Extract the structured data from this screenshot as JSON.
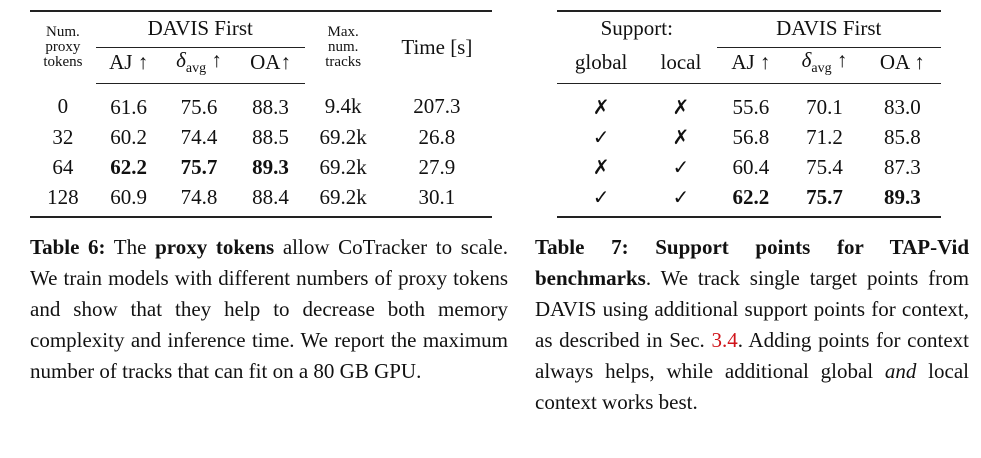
{
  "table6": {
    "header": {
      "num_tokens": [
        "Num.",
        "proxy",
        "tokens"
      ],
      "group": "DAVIS First",
      "aj": "AJ ↑",
      "delta": {
        "symbol": "δ",
        "sub": "avg",
        "arrow": "↑"
      },
      "oa": "OA↑",
      "max_tracks": [
        "Max.",
        "num.",
        "tracks"
      ],
      "time": "Time [s]"
    },
    "rows": [
      [
        "0",
        "61.6",
        "75.6",
        "88.3",
        "9.4k",
        "207.3"
      ],
      [
        "32",
        "60.2",
        "74.4",
        "88.5",
        "69.2k",
        "26.8"
      ],
      [
        "64",
        "62.2",
        "75.7",
        "89.3",
        "69.2k",
        "27.9"
      ],
      [
        "128",
        "60.9",
        "74.8",
        "88.4",
        "69.2k",
        "30.1"
      ]
    ],
    "caption": [
      "Table 6:",
      " The ",
      "proxy tokens",
      " allow CoTracker to scale. We train models with different numbers of proxy tokens and show that they help to decrease both memory complexity and inference time. We report the maximum number of tracks that can fit on a 80 GB GPU."
    ]
  },
  "table7": {
    "header": {
      "support": "Support:",
      "group": "DAVIS First",
      "global": "global",
      "local": "local",
      "aj": "AJ ↑",
      "delta": {
        "symbol": "δ",
        "sub": "avg",
        "arrow": "↑"
      },
      "oa": "OA ↑"
    },
    "rows": [
      [
        "✗",
        "✗",
        "55.6",
        "70.1",
        "83.0"
      ],
      [
        "✓",
        "✗",
        "56.8",
        "71.2",
        "85.8"
      ],
      [
        "✗",
        "✓",
        "60.4",
        "75.4",
        "87.3"
      ],
      [
        "✓",
        "✓",
        "62.2",
        "75.7",
        "89.3"
      ]
    ],
    "caption": [
      "Table 7: Support points for TAP-Vid benchmarks",
      ". We track single target points from DAVIS using additional support points for context, as described in Sec. ",
      "3.4",
      ". Adding points for context always helps, while additional global ",
      "and",
      " local context works best."
    ]
  }
}
